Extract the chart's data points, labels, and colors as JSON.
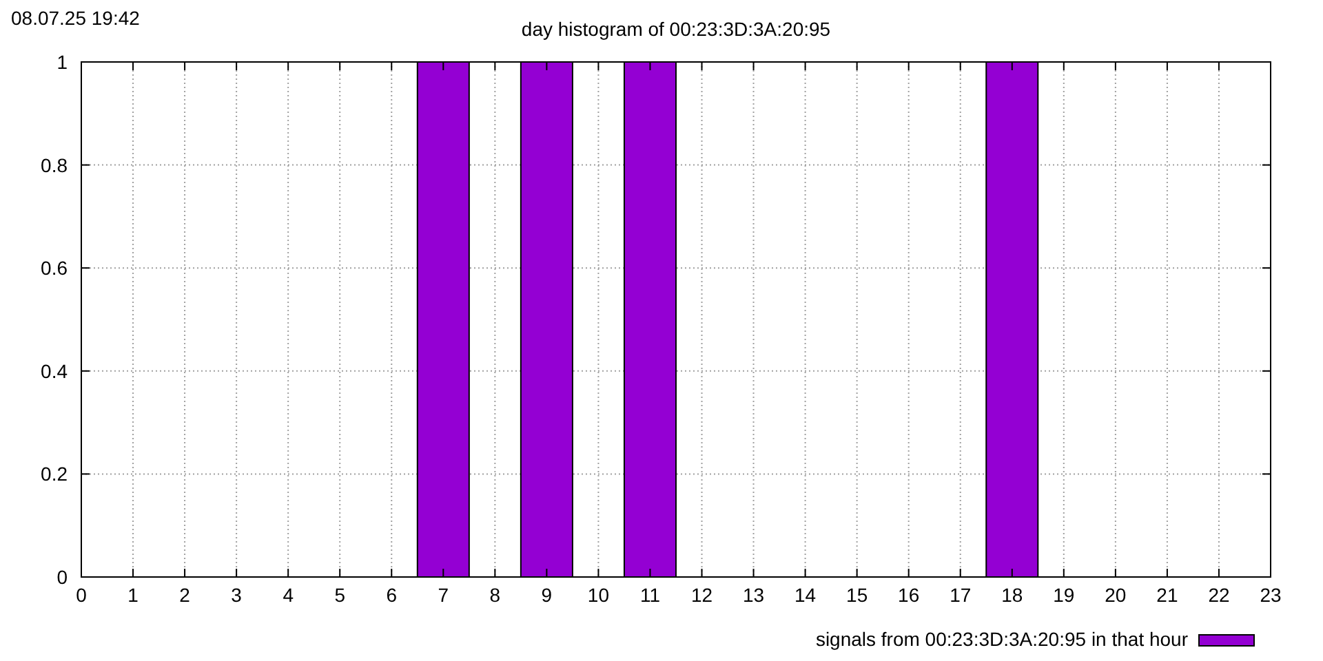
{
  "chart_data": {
    "type": "bar",
    "title": "day histogram of 00:23:3D:3A:20:95",
    "annotations": [
      "08.07.25 19:42"
    ],
    "x": [
      7,
      9,
      11,
      18
    ],
    "series": [
      {
        "name": "signals from 00:23:3D:3A:20:95 in that hour",
        "color": "#9400d3",
        "values": [
          1,
          1,
          1,
          1
        ]
      }
    ],
    "xlim": [
      0,
      23
    ],
    "xticks": [
      0,
      1,
      2,
      3,
      4,
      5,
      6,
      7,
      8,
      9,
      10,
      11,
      12,
      13,
      14,
      15,
      16,
      17,
      18,
      19,
      20,
      21,
      22,
      23
    ],
    "ylim": [
      0,
      1
    ],
    "yticks": [
      0,
      0.2,
      0.4,
      0.6,
      0.8,
      1
    ],
    "grid": true,
    "legend": "bottom right",
    "line_style": "dotted"
  }
}
